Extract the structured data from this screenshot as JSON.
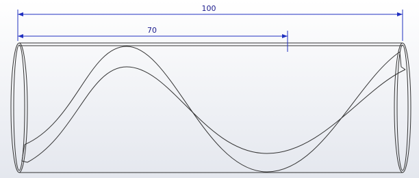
{
  "dimensions": [
    {
      "value": 100
    },
    {
      "value": 70
    }
  ]
}
